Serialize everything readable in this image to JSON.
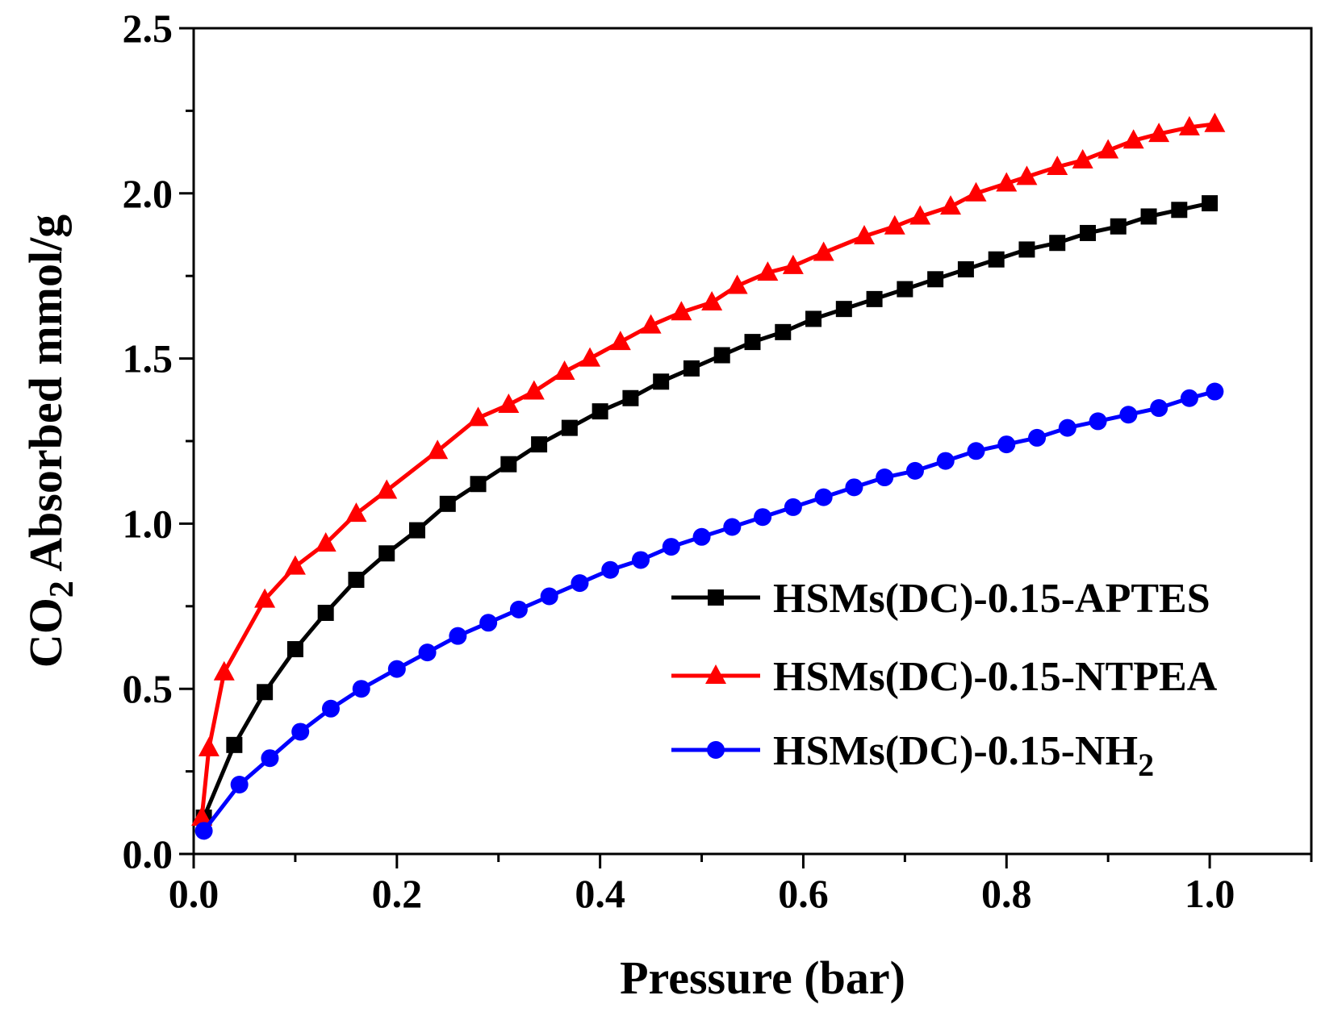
{
  "chart_data": {
    "type": "line",
    "title": "",
    "xlabel": "Pressure (bar)",
    "ylabel": {
      "pre": "CO",
      "sub": "2",
      "post": " Absorbed mmol/g"
    },
    "xlim": [
      0.0,
      1.1
    ],
    "ylim": [
      0.0,
      2.5
    ],
    "xticks": [
      0.0,
      0.2,
      0.4,
      0.6,
      0.8,
      1.0
    ],
    "xtick_labels": [
      "0.0",
      "0.2",
      "0.4",
      "0.6",
      "0.8",
      "1.0"
    ],
    "yticks": [
      0.0,
      0.5,
      1.0,
      1.5,
      2.0,
      2.5
    ],
    "ytick_labels": [
      "0.0",
      "0.5",
      "1.0",
      "1.5",
      "2.0",
      "2.5"
    ],
    "grid": false,
    "legend_position": "lower-right",
    "series": [
      {
        "name": "HSMs(DC)-0.15-APTES",
        "label_pre": "HSMs(DC)-0.15-APTES",
        "label_sub": "",
        "color": "#000000",
        "marker": "square",
        "x": [
          0.01,
          0.04,
          0.07,
          0.1,
          0.13,
          0.16,
          0.19,
          0.22,
          0.25,
          0.28,
          0.31,
          0.34,
          0.37,
          0.4,
          0.43,
          0.46,
          0.49,
          0.52,
          0.55,
          0.58,
          0.61,
          0.64,
          0.67,
          0.7,
          0.73,
          0.76,
          0.79,
          0.82,
          0.85,
          0.88,
          0.91,
          0.94,
          0.97,
          1.0
        ],
        "y": [
          0.11,
          0.33,
          0.49,
          0.62,
          0.73,
          0.83,
          0.91,
          0.98,
          1.06,
          1.12,
          1.18,
          1.24,
          1.29,
          1.34,
          1.38,
          1.43,
          1.47,
          1.51,
          1.55,
          1.58,
          1.62,
          1.65,
          1.68,
          1.71,
          1.74,
          1.77,
          1.8,
          1.83,
          1.85,
          1.88,
          1.9,
          1.93,
          1.95,
          1.97
        ]
      },
      {
        "name": "HSMs(DC)-0.15-NTPEA",
        "label_pre": "HSMs(DC)-0.15-NTPEA",
        "label_sub": "",
        "color": "#ff0000",
        "marker": "triangle",
        "x": [
          0.008,
          0.015,
          0.03,
          0.07,
          0.1,
          0.13,
          0.16,
          0.19,
          0.24,
          0.28,
          0.31,
          0.335,
          0.365,
          0.39,
          0.42,
          0.45,
          0.48,
          0.51,
          0.535,
          0.565,
          0.59,
          0.62,
          0.66,
          0.69,
          0.715,
          0.745,
          0.77,
          0.8,
          0.82,
          0.85,
          0.875,
          0.9,
          0.925,
          0.95,
          0.98,
          1.005
        ],
        "y": [
          0.11,
          0.32,
          0.55,
          0.77,
          0.87,
          0.94,
          1.03,
          1.1,
          1.22,
          1.32,
          1.36,
          1.4,
          1.46,
          1.5,
          1.55,
          1.6,
          1.64,
          1.67,
          1.72,
          1.76,
          1.78,
          1.82,
          1.87,
          1.9,
          1.93,
          1.96,
          2.0,
          2.03,
          2.05,
          2.08,
          2.1,
          2.13,
          2.16,
          2.18,
          2.2,
          2.21
        ]
      },
      {
        "name": "HSMs(DC)-0.15-NH2",
        "label_pre": "HSMs(DC)-0.15-NH",
        "label_sub": "2",
        "color": "#0000ff",
        "marker": "circle",
        "x": [
          0.01,
          0.045,
          0.075,
          0.105,
          0.135,
          0.165,
          0.2,
          0.23,
          0.26,
          0.29,
          0.32,
          0.35,
          0.38,
          0.41,
          0.44,
          0.47,
          0.5,
          0.53,
          0.56,
          0.59,
          0.62,
          0.65,
          0.68,
          0.71,
          0.74,
          0.77,
          0.8,
          0.83,
          0.86,
          0.89,
          0.92,
          0.95,
          0.98,
          1.005
        ],
        "y": [
          0.07,
          0.21,
          0.29,
          0.37,
          0.44,
          0.5,
          0.56,
          0.61,
          0.66,
          0.7,
          0.74,
          0.78,
          0.82,
          0.86,
          0.89,
          0.93,
          0.96,
          0.99,
          1.02,
          1.05,
          1.08,
          1.11,
          1.14,
          1.16,
          1.19,
          1.22,
          1.24,
          1.26,
          1.29,
          1.31,
          1.33,
          1.35,
          1.38,
          1.4
        ]
      }
    ]
  }
}
